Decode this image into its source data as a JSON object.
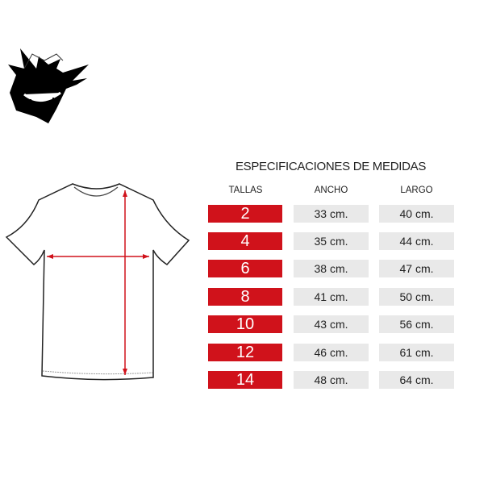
{
  "title": "ESPECIFICACIONES DE MEDIDAS",
  "headers": {
    "tallas": "TALLAS",
    "ancho": "ANCHO",
    "largo": "LARGO"
  },
  "rows": [
    {
      "talla": "2",
      "ancho": "33 cm.",
      "largo": "40 cm."
    },
    {
      "talla": "4",
      "ancho": "35 cm.",
      "largo": "44 cm."
    },
    {
      "talla": "6",
      "ancho": "38 cm.",
      "largo": "47 cm."
    },
    {
      "talla": "8",
      "ancho": "41 cm.",
      "largo": "50 cm."
    },
    {
      "talla": "10",
      "ancho": "43 cm.",
      "largo": "56 cm."
    },
    {
      "talla": "12",
      "ancho": "46 cm.",
      "largo": "61 cm."
    },
    {
      "talla": "14",
      "ancho": "48 cm.",
      "largo": "64 cm."
    }
  ],
  "colors": {
    "accent": "#d0121b",
    "cell_bg": "#e9e9e9"
  },
  "icons": {
    "logo": "ghost-face-logo",
    "shirt": "tshirt-diagram"
  }
}
